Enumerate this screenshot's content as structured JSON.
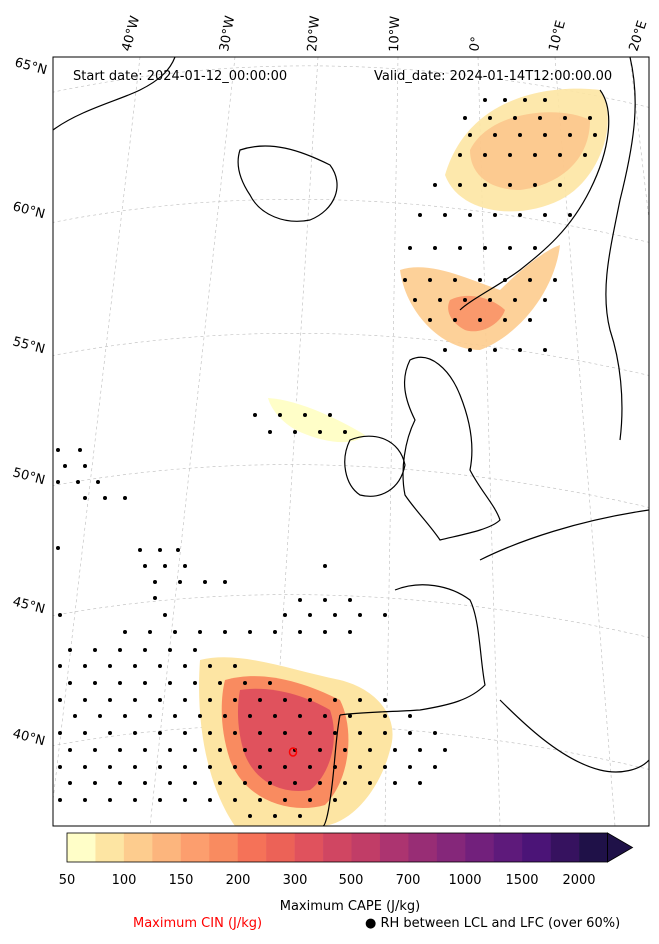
{
  "header": {
    "start_date": "Start date: 2024-01-12_00:00:00",
    "valid_date": "Valid_date: 2024-01-14T12:00:00.00"
  },
  "map": {
    "lon_labels": [
      "40°W",
      "30°W",
      "20°W",
      "10°W",
      "0°",
      "10°E",
      "20°E"
    ],
    "lat_labels": [
      "65°N",
      "60°N",
      "55°N",
      "50°N",
      "45°N",
      "40°N"
    ]
  },
  "colorbar": {
    "ticks": [
      "50",
      "100",
      "150",
      "200",
      "300",
      "500",
      "700",
      "1000",
      "1500",
      "2000"
    ],
    "colors": [
      "#fffec8",
      "#fde5a3",
      "#fdcc8e",
      "#fcb57d",
      "#fc9e6e",
      "#f98b60",
      "#f57258",
      "#ec6257",
      "#e0525d",
      "#d04662",
      "#c13d67",
      "#ac3470",
      "#982d75",
      "#85277a",
      "#72207c",
      "#5e1a7b",
      "#4b1477",
      "#36125f",
      "#1f1148"
    ],
    "label": "Maximum CAPE (J/kg)"
  },
  "legend": {
    "cin": "Maximum CIN (J/kg)",
    "rh": "● RH between LCL and LFC (over 60%)"
  },
  "colors": {
    "cin_contour": "#ff0000",
    "coast": "#000000"
  }
}
